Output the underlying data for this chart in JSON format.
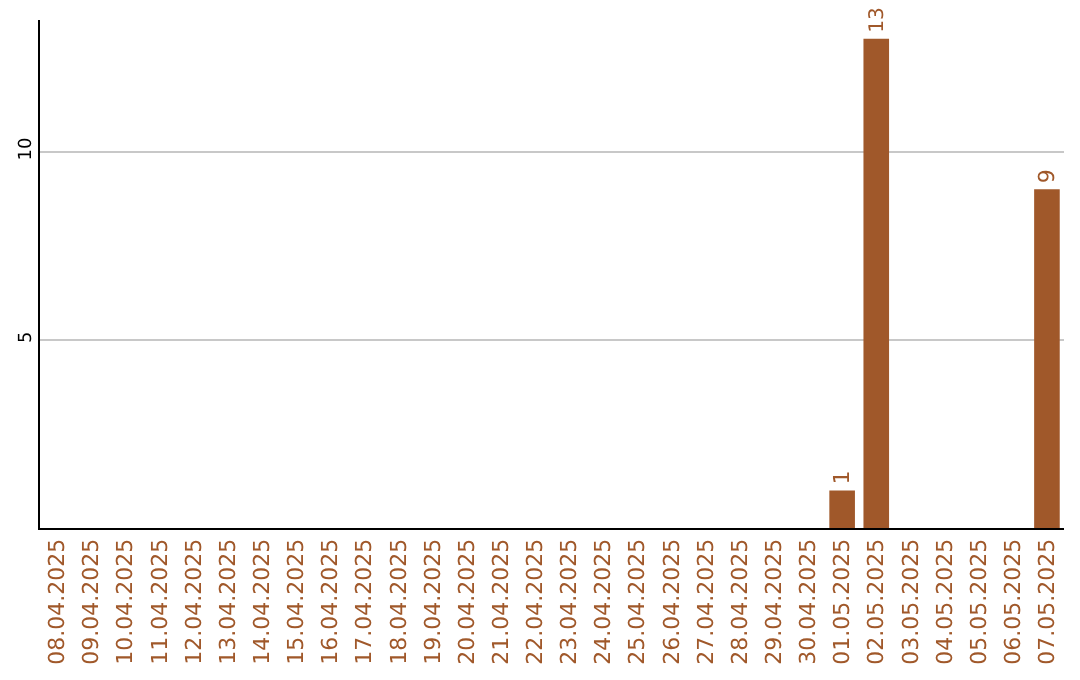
{
  "chart_data": {
    "type": "bar",
    "categories": [
      "08.04.2025",
      "09.04.2025",
      "10.04.2025",
      "11.04.2025",
      "12.04.2025",
      "13.04.2025",
      "14.04.2025",
      "15.04.2025",
      "16.04.2025",
      "17.04.2025",
      "18.04.2025",
      "19.04.2025",
      "20.04.2025",
      "21.04.2025",
      "22.04.2025",
      "23.04.2025",
      "24.04.2025",
      "25.04.2025",
      "26.04.2025",
      "27.04.2025",
      "28.04.2025",
      "29.04.2025",
      "30.04.2025",
      "01.05.2025",
      "02.05.2025",
      "03.05.2025",
      "04.05.2025",
      "05.05.2025",
      "06.05.2025",
      "07.05.2025"
    ],
    "values": [
      0,
      0,
      0,
      0,
      0,
      0,
      0,
      0,
      0,
      0,
      0,
      0,
      0,
      0,
      0,
      0,
      0,
      0,
      0,
      0,
      0,
      0,
      0,
      1,
      13,
      0,
      0,
      0,
      0,
      9
    ],
    "value_labels": [
      null,
      null,
      null,
      null,
      null,
      null,
      null,
      null,
      null,
      null,
      null,
      null,
      null,
      null,
      null,
      null,
      null,
      null,
      null,
      null,
      null,
      null,
      null,
      "1",
      "13",
      null,
      null,
      null,
      null,
      "9"
    ],
    "color": "#a0582a",
    "ylim": [
      0,
      13.5
    ],
    "yticks": [
      5,
      10
    ],
    "grid": "y"
  }
}
